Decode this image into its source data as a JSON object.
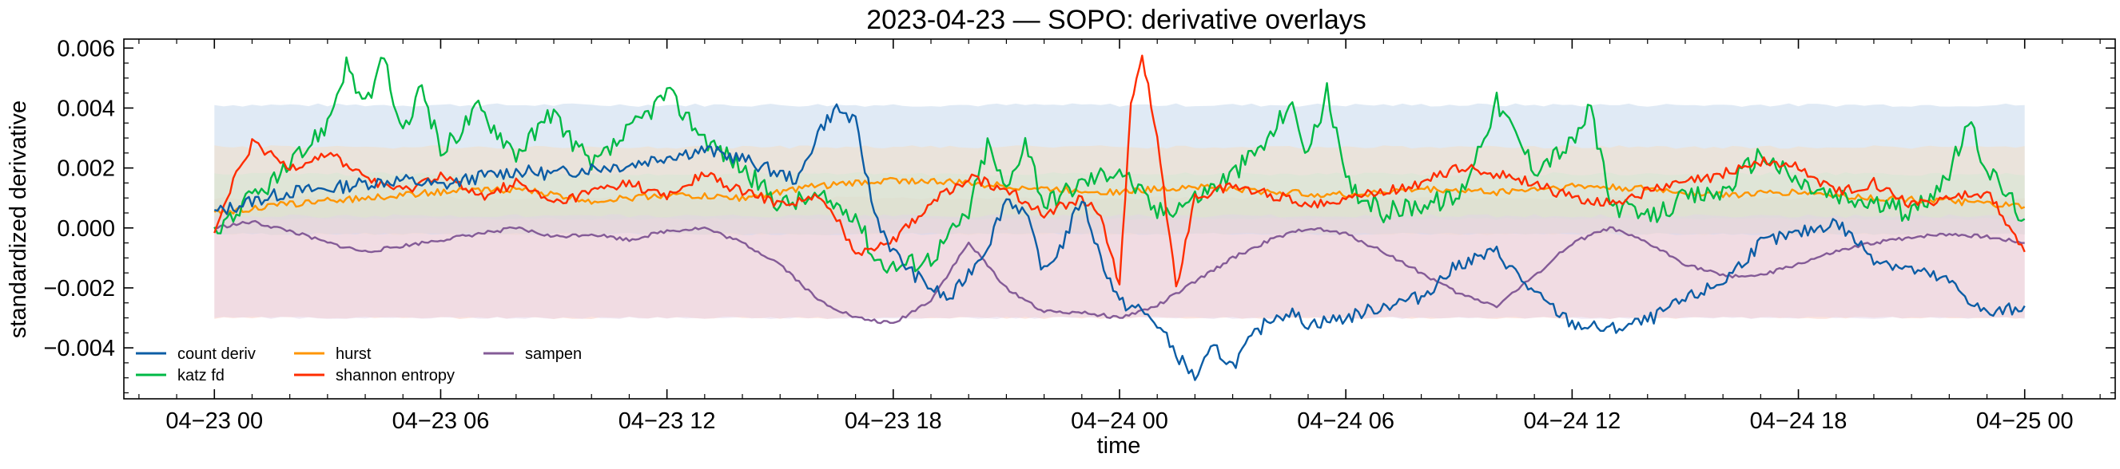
{
  "chart_data": {
    "type": "line",
    "title": "2023-04-23 — SOPO: derivative overlays",
    "xlabel": "time",
    "ylabel": "standardized derivative",
    "x_ticks": [
      "04−23 00",
      "04−23 06",
      "04−23 12",
      "04−23 18",
      "04−24 00",
      "04−24 06",
      "04−24 12",
      "04−24 18",
      "04−25 00"
    ],
    "y_ticks": [
      "−0.004",
      "−0.002",
      "0.000",
      "0.002",
      "0.004",
      "0.006"
    ],
    "y_tick_values": [
      -0.004,
      -0.002,
      0.0,
      0.002,
      0.004,
      0.006
    ],
    "x_range_hours": [
      -2.4,
      50.4
    ],
    "ylim": [
      -0.0057,
      0.0063
    ],
    "x_unit": "hours since 04-23 00",
    "grid": false,
    "legend": {
      "placement": "lower-left",
      "columns": 3
    },
    "series": [
      {
        "name": "count deriv",
        "color": "#0c5da5",
        "band": {
          "color": "#c6d9ec",
          "opacity": 0.55,
          "lower": -0.0002,
          "upper": 0.0041
        },
        "x": [
          0,
          1,
          2,
          3,
          4,
          5,
          6,
          7,
          8,
          9,
          10,
          11,
          12,
          13,
          14,
          15,
          15.5,
          16,
          16.5,
          17,
          17.5,
          18,
          18.5,
          19,
          19.5,
          20,
          20.5,
          21,
          21.5,
          22,
          22.5,
          23,
          23.5,
          24,
          24.5,
          25,
          25.5,
          26,
          26.5,
          27,
          27.5,
          28,
          28.5,
          29,
          30,
          31,
          32,
          33,
          34,
          35,
          36,
          37,
          38,
          39,
          40,
          41,
          42,
          43,
          44,
          45,
          46,
          47,
          48
        ],
        "y": [
          0.0005,
          0.0009,
          0.0012,
          0.0013,
          0.0015,
          0.0016,
          0.0014,
          0.0017,
          0.0019,
          0.0018,
          0.002,
          0.0021,
          0.0024,
          0.0026,
          0.0023,
          0.0018,
          0.0016,
          0.0032,
          0.004,
          0.0035,
          0.0005,
          -0.0008,
          -0.0015,
          -0.002,
          -0.0024,
          -0.0015,
          -0.0006,
          0.001,
          0.0005,
          -0.0015,
          -0.0005,
          0.001,
          -0.001,
          -0.0025,
          -0.0027,
          -0.0032,
          -0.0042,
          -0.005,
          -0.004,
          -0.0046,
          -0.0037,
          -0.003,
          -0.0028,
          -0.0032,
          -0.003,
          -0.0026,
          -0.0023,
          -0.0012,
          -0.0008,
          -0.0022,
          -0.0032,
          -0.0034,
          -0.0031,
          -0.0024,
          -0.0018,
          -0.0005,
          -0.0002,
          0.0002,
          -0.001,
          -0.0014,
          -0.0018,
          -0.0029,
          -0.0026
        ]
      },
      {
        "name": "katz fd",
        "color": "#00b945",
        "band": {
          "color": "#cfe8d3",
          "opacity": 0.4,
          "lower": 0.0003,
          "upper": 0.0018
        },
        "x": [
          0,
          1,
          2,
          3,
          3.5,
          4,
          4.5,
          5,
          5.5,
          6,
          7,
          8,
          9,
          10,
          11,
          12,
          13,
          14,
          15,
          16,
          17,
          17.5,
          18,
          19,
          20,
          20.5,
          21,
          21.5,
          22,
          23,
          24,
          25,
          26,
          27,
          28,
          28.5,
          29,
          29.5,
          30,
          31,
          32,
          33,
          34,
          35,
          36,
          36.5,
          37,
          38,
          39,
          40,
          41,
          42,
          43,
          44,
          45,
          46,
          46.5,
          47,
          48
        ],
        "y": [
          -0.0001,
          0.001,
          0.002,
          0.0035,
          0.0055,
          0.004,
          0.0056,
          0.003,
          0.0048,
          0.0025,
          0.004,
          0.0025,
          0.0038,
          0.002,
          0.0032,
          0.0045,
          0.003,
          0.002,
          0.0008,
          0.001,
          0.0005,
          -0.001,
          -0.0013,
          -0.001,
          0.0005,
          0.0028,
          0.0012,
          0.003,
          0.0008,
          0.0015,
          0.002,
          0.0005,
          0.001,
          0.0018,
          0.003,
          0.0042,
          0.0025,
          0.0045,
          0.0015,
          0.0005,
          0.0008,
          0.001,
          0.0042,
          0.002,
          0.0028,
          0.004,
          0.0008,
          0.0003,
          0.001,
          0.0012,
          0.0025,
          0.0015,
          0.001,
          0.0008,
          0.0005,
          0.0018,
          0.0035,
          0.002,
          0.0003
        ]
      },
      {
        "name": "hurst",
        "color": "#ff9500",
        "band": {
          "color": "#f6dcbd",
          "opacity": 0.45,
          "lower": -0.0002,
          "upper": 0.0027
        },
        "x": [
          0,
          2,
          4,
          6,
          8,
          10,
          12,
          14,
          16,
          18,
          20,
          22,
          24,
          26,
          28,
          30,
          32,
          34,
          36,
          38,
          40,
          42,
          44,
          46,
          48
        ],
        "y": [
          0.0005,
          0.0008,
          0.001,
          0.0012,
          0.0013,
          0.0009,
          0.0011,
          0.001,
          0.0014,
          0.0016,
          0.0015,
          0.0013,
          0.0012,
          0.0014,
          0.0012,
          0.0011,
          0.0013,
          0.0012,
          0.0014,
          0.0013,
          0.0011,
          0.0012,
          0.001,
          0.0009,
          0.0007
        ]
      },
      {
        "name": "shannon entropy",
        "color": "#ff2c00",
        "band": {
          "color": "#fbd2c8",
          "opacity": 0.6,
          "lower": -0.003,
          "upper": 0.001
        },
        "x": [
          0,
          0.5,
          1,
          2,
          3,
          4,
          5,
          6,
          7,
          8,
          9,
          10,
          11,
          12,
          13,
          14,
          15,
          16,
          16.5,
          17,
          18,
          19,
          20,
          21,
          22,
          23,
          23.5,
          24,
          24.3,
          24.6,
          25,
          25.5,
          26,
          27,
          28,
          29,
          30,
          31,
          32,
          33,
          34,
          35,
          36,
          37,
          38,
          39,
          40,
          41,
          42,
          43,
          44,
          45,
          46,
          47,
          48
        ],
        "y": [
          -0.0002,
          0.0015,
          0.0028,
          0.002,
          0.0025,
          0.0017,
          0.0012,
          0.0018,
          0.001,
          0.0015,
          0.0008,
          0.0012,
          0.0015,
          0.001,
          0.0018,
          0.0012,
          0.0008,
          0.001,
          0.0003,
          -0.0008,
          -0.0004,
          0.0008,
          0.0017,
          0.0013,
          0.0005,
          0.001,
          0.0005,
          -0.002,
          0.004,
          0.0058,
          0.003,
          -0.002,
          0.001,
          0.0014,
          0.0011,
          0.0008,
          0.001,
          0.0012,
          0.0015,
          0.002,
          0.0018,
          0.0015,
          0.001,
          0.0008,
          0.0012,
          0.0015,
          0.0018,
          0.0022,
          0.002,
          0.0012,
          0.0015,
          0.0008,
          0.001,
          0.0012,
          -0.0008
        ]
      },
      {
        "name": "sampen",
        "color": "#845b97",
        "band": {
          "color": "#e2d3e9",
          "opacity": 0.45,
          "lower": -0.003,
          "upper": 0.0004
        },
        "x": [
          0,
          1,
          2,
          3,
          4,
          5,
          6,
          7,
          8,
          9,
          10,
          11,
          12,
          13,
          14,
          15,
          16,
          17,
          18,
          19,
          20,
          21,
          22,
          23,
          24,
          25,
          26,
          27,
          28,
          29,
          30,
          31,
          32,
          33,
          34,
          35,
          36,
          37,
          38,
          39,
          40,
          41,
          42,
          43,
          44,
          45,
          46,
          47,
          48
        ],
        "y": [
          0.0,
          0.0002,
          -0.0001,
          -0.0005,
          -0.0008,
          -0.0006,
          -0.0004,
          -0.0002,
          0.0,
          -0.0003,
          -0.0002,
          -0.0004,
          -0.0001,
          0.0,
          -0.0005,
          -0.0012,
          -0.0024,
          -0.003,
          -0.0032,
          -0.0024,
          -0.0005,
          -0.002,
          -0.0028,
          -0.0028,
          -0.003,
          -0.0026,
          -0.0018,
          -0.001,
          -0.0004,
          0.0,
          -0.0002,
          -0.0008,
          -0.0015,
          -0.0022,
          -0.0026,
          -0.0016,
          -0.0005,
          0.0,
          -0.0005,
          -0.0012,
          -0.0016,
          -0.0016,
          -0.0012,
          -0.0008,
          -0.0005,
          -0.0003,
          -0.0002,
          -0.0003,
          -0.0005
        ]
      }
    ]
  }
}
